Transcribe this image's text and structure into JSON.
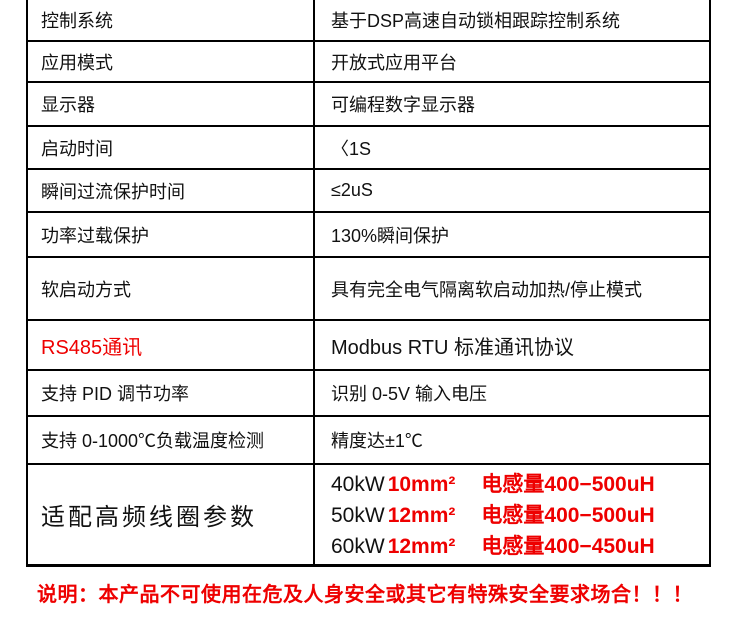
{
  "colors": {
    "accent_red": "#ee0000",
    "text": "#111111",
    "border": "#000000",
    "background": "#ffffff"
  },
  "table": {
    "rows": [
      {
        "label": "控制系统",
        "value": "基于DSP高速自动锁相跟踪控制系统"
      },
      {
        "label": "应用模式",
        "value": "开放式应用平台"
      },
      {
        "label": "显示器",
        "value": "可编程数字显示器"
      },
      {
        "label": "启动时间",
        "value": "〈1S"
      },
      {
        "label": "瞬间过流保护时间",
        "value": "≤2uS"
      },
      {
        "label": "功率过载保护",
        "value": "130%瞬间保护"
      },
      {
        "label": "软启动方式",
        "value": "具有完全电气隔离软启动加热/停止模式"
      },
      {
        "label": "RS485通讯",
        "value": "Modbus RTU 标准通讯协议"
      },
      {
        "label": "支持 PID 调节功率",
        "value": "识别 0-5V 输入电压"
      },
      {
        "label": "支持 0-1000℃负载温度检测",
        "value": "精度达±1℃"
      },
      {
        "label": "适配高频线圈参数"
      }
    ]
  },
  "coil_specs": [
    {
      "power": "40kW",
      "wire": "10mm²",
      "inductance": "电感量400−500uH"
    },
    {
      "power": "50kW",
      "wire": "12mm²",
      "inductance": "电感量400−500uH"
    },
    {
      "power": "60kW",
      "wire": "12mm²",
      "inductance": "电感量400−450uH"
    }
  ],
  "footer": {
    "note": "说明：本产品不可使用在危及人身安全或其它有特殊安全要求场合！！！"
  }
}
